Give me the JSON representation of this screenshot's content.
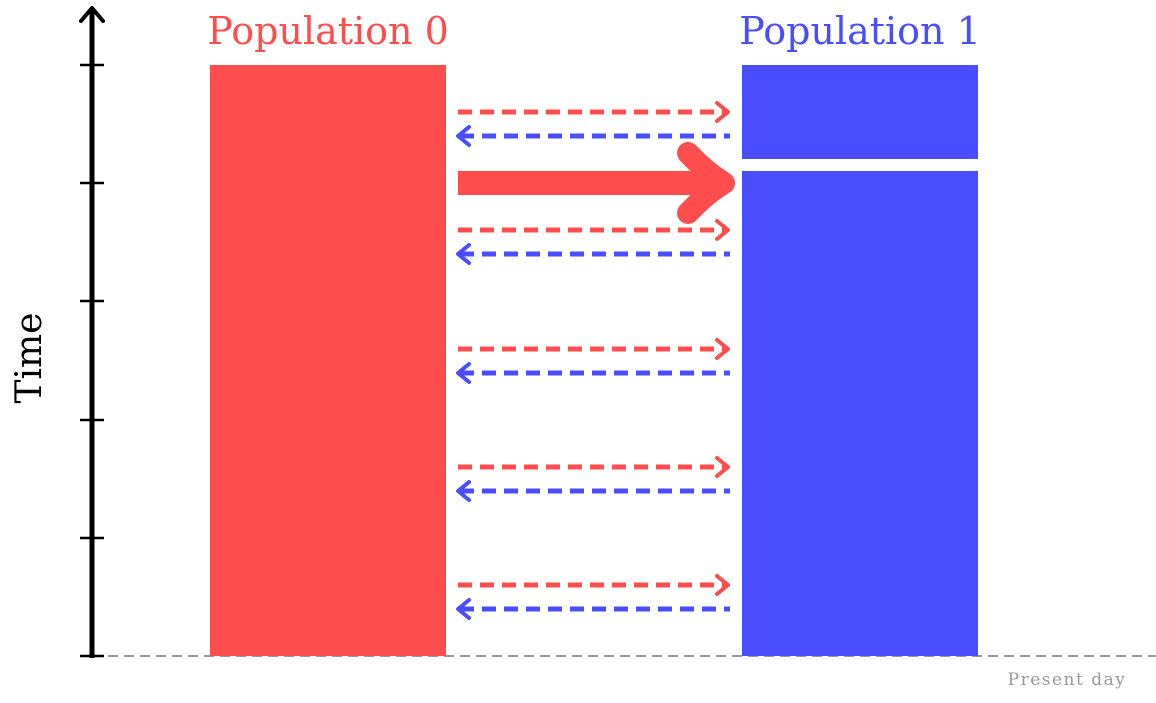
{
  "axis": {
    "label": "Time"
  },
  "populations": [
    {
      "name": "Population 0",
      "color": "#ff4d4d"
    },
    {
      "name": "Population 1",
      "color": "#4a4dff"
    }
  ],
  "present_day_label": "Present day",
  "migration_pairs": 5,
  "pulse_event": {
    "direction": "0 to 1"
  },
  "colors": {
    "axis": "#000000",
    "baseline": "#999999",
    "present_text": "#999999",
    "gap": "#ffffff"
  }
}
